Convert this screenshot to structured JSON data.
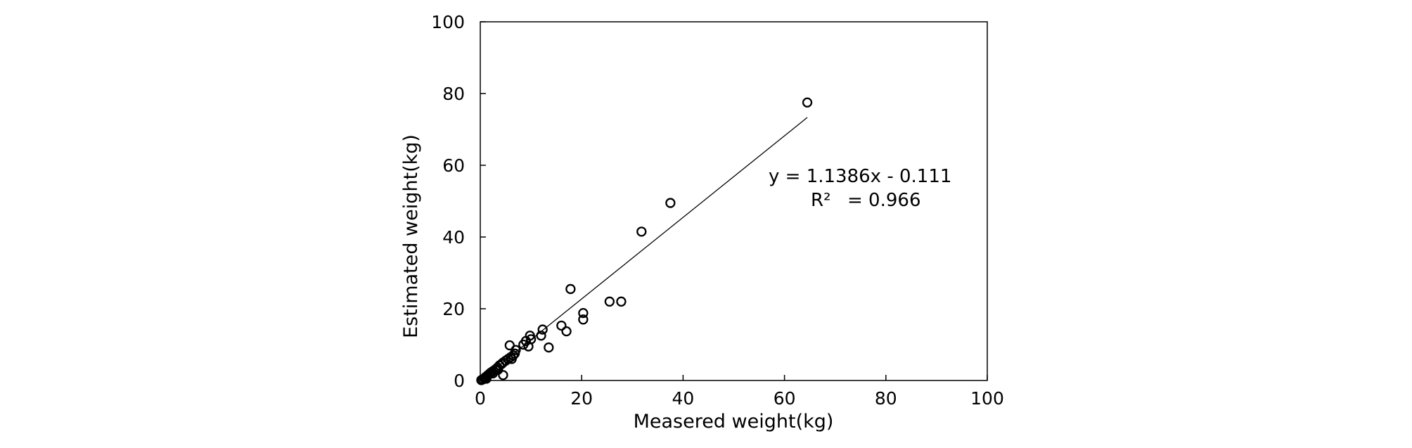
{
  "chart_data": {
    "type": "scatter",
    "title": "",
    "xlabel": "Measered weight(kg)",
    "ylabel": "Estimated weight(kg)",
    "xlim": [
      0,
      100
    ],
    "ylim": [
      0,
      100
    ],
    "x_ticks": [
      "0",
      "20",
      "40",
      "60",
      "80",
      "100"
    ],
    "y_ticks": [
      "0",
      "20",
      "40",
      "60",
      "80",
      "100"
    ],
    "grid": false,
    "legend": "none",
    "marker": "open-circle",
    "colors": {
      "marker": "#000000",
      "line": "#000000",
      "frame": "#000000"
    },
    "trendline": {
      "type": "linear",
      "slope": 1.1386,
      "intercept": -0.111,
      "x_range": [
        0,
        64.5
      ],
      "equation": "y = 1.1386x - 0.111",
      "r2_label": "R²",
      "r2_value": "= 0.966"
    },
    "points": [
      [
        0.2,
        0.1
      ],
      [
        0.5,
        0.3
      ],
      [
        0.8,
        0.6
      ],
      [
        1.0,
        0.9
      ],
      [
        1.3,
        1.2
      ],
      [
        1.5,
        1.5
      ],
      [
        1.8,
        1.8
      ],
      [
        2.0,
        2.1
      ],
      [
        2.3,
        2.4
      ],
      [
        2.6,
        2.7
      ],
      [
        3.0,
        3.1
      ],
      [
        3.4,
        3.6
      ],
      [
        3.8,
        4.2
      ],
      [
        4.2,
        4.6
      ],
      [
        4.5,
        5.0
      ],
      [
        4.5,
        1.5
      ],
      [
        3.5,
        3.0
      ],
      [
        2.5,
        2.0
      ],
      [
        1.2,
        0.5
      ],
      [
        5.0,
        5.5
      ],
      [
        5.5,
        6.0
      ],
      [
        6.0,
        6.5
      ],
      [
        6.5,
        7.0
      ],
      [
        6.8,
        7.5
      ],
      [
        7.0,
        8.5
      ],
      [
        5.8,
        9.8
      ],
      [
        6.2,
        6.0
      ],
      [
        8.5,
        10.0
      ],
      [
        9.0,
        11.0
      ],
      [
        9.5,
        9.5
      ],
      [
        9.8,
        12.5
      ],
      [
        10.0,
        11.5
      ],
      [
        12.0,
        12.5
      ],
      [
        12.3,
        14.2
      ],
      [
        13.5,
        9.2
      ],
      [
        16.0,
        15.3
      ],
      [
        17.0,
        13.7
      ],
      [
        17.8,
        25.5
      ],
      [
        20.3,
        18.8
      ],
      [
        20.3,
        17.0
      ],
      [
        25.5,
        22.0
      ],
      [
        27.8,
        22.0
      ],
      [
        31.8,
        41.5
      ],
      [
        37.5,
        49.5
      ],
      [
        64.5,
        77.5
      ]
    ]
  }
}
